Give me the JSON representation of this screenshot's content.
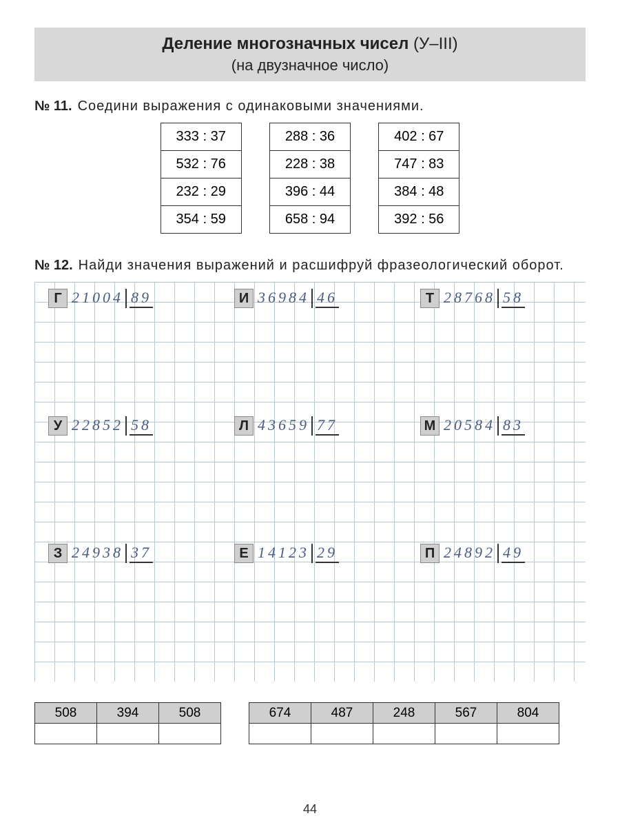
{
  "title": {
    "line1_bold": "Деление многозначных чисел",
    "line1_suffix": "(У–III)",
    "line2": "(на двузначное число)"
  },
  "ex11": {
    "num": "№ 11.",
    "text": "Соедини выражения с одинаковыми значениями.",
    "col1": [
      "333 : 37",
      "532 : 76",
      "232 : 29",
      "354 : 59"
    ],
    "col2": [
      "288 : 36",
      "228 : 38",
      "396 : 44",
      "658 : 94"
    ],
    "col3": [
      "402 : 67",
      "747 : 83",
      "384 : 48",
      "392 : 56"
    ]
  },
  "ex12": {
    "num": "№ 12.",
    "text": "Найди значения выражений и расшифруй фразеологический оборот.",
    "problems": [
      {
        "letter": "Г",
        "dividend": "21004",
        "divisor": "89"
      },
      {
        "letter": "И",
        "dividend": "36984",
        "divisor": "46"
      },
      {
        "letter": "Т",
        "dividend": "28768",
        "divisor": "58"
      },
      {
        "letter": "У",
        "dividend": "22852",
        "divisor": "58"
      },
      {
        "letter": "Л",
        "dividend": "43659",
        "divisor": "77"
      },
      {
        "letter": "М",
        "dividend": "20584",
        "divisor": "83"
      },
      {
        "letter": "З",
        "dividend": "24938",
        "divisor": "37"
      },
      {
        "letter": "Е",
        "dividend": "14123",
        "divisor": "29"
      },
      {
        "letter": "П",
        "dividend": "24892",
        "divisor": "49"
      }
    ],
    "answers1": [
      "508",
      "394",
      "508"
    ],
    "answers2": [
      "674",
      "487",
      "248",
      "567",
      "804"
    ]
  },
  "page_number": "44"
}
